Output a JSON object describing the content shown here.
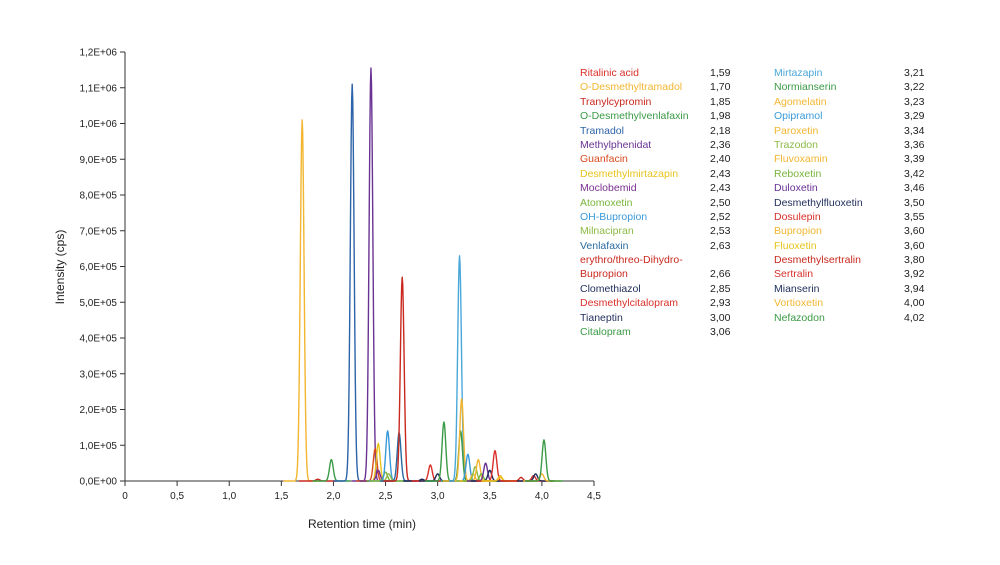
{
  "chart_data": {
    "type": "line",
    "title": "",
    "xlabel": "Retention time (min)",
    "ylabel": "Intensity (cps)",
    "xlim": [
      0,
      4.5
    ],
    "ylim": [
      0,
      1200000
    ],
    "grid": false,
    "x_ticks": [
      "0",
      "0,5",
      "1,0",
      "1,5",
      "2,0",
      "2,5",
      "3,0",
      "3,5",
      "4,0",
      "4,5"
    ],
    "x_tick_values": [
      0,
      0.5,
      1.0,
      1.5,
      2.0,
      2.5,
      3.0,
      3.5,
      4.0,
      4.5
    ],
    "y_ticks": [
      "0,0E+00",
      "1,0E+05",
      "2,0E+05",
      "3,0E+05",
      "4,0E+05",
      "5,0E+05",
      "6,0E+05",
      "7,0E+05",
      "8,0E+05",
      "9,0E+05",
      "1,0E+06",
      "1,1E+06",
      "1,2E+06"
    ],
    "y_tick_values": [
      0,
      100000,
      200000,
      300000,
      400000,
      500000,
      600000,
      700000,
      800000,
      900000,
      1000000,
      1100000,
      1200000
    ],
    "legend_position": "right",
    "series": [
      {
        "name": "Ritalinic acid",
        "rt": "1,59",
        "rt_value": 1.59,
        "peak": 0,
        "color": "#d9302a"
      },
      {
        "name": "O-Desmethyltramadol",
        "rt": "1,70",
        "rt_value": 1.7,
        "peak": 1010000,
        "color": "#f2b630"
      },
      {
        "name": "Tranylcypromin",
        "rt": "1,85",
        "rt_value": 1.85,
        "peak": 5000,
        "color": "#c8281e"
      },
      {
        "name": "O-Desmethylvenlafaxin",
        "rt": "1,98",
        "rt_value": 1.98,
        "peak": 60000,
        "color": "#3a9a45"
      },
      {
        "name": "Tramadol",
        "rt": "2,18",
        "rt_value": 2.18,
        "peak": 1110000,
        "color": "#2d63a8"
      },
      {
        "name": "Methylphenidat",
        "rt": "2,36",
        "rt_value": 2.36,
        "peak": 1155000,
        "color": "#6a3293"
      },
      {
        "name": "Guanfacin",
        "rt": "2,40",
        "rt_value": 2.4,
        "peak": 90000,
        "color": "#d94a1e"
      },
      {
        "name": "Desmethylmirtazapin",
        "rt": "2,43",
        "rt_value": 2.43,
        "peak": 105000,
        "color": "#e6c41e"
      },
      {
        "name": "Moclobemid",
        "rt": "2,43",
        "rt_value": 2.43,
        "peak": 30000,
        "color": "#7a2f8f"
      },
      {
        "name": "Atomoxetin",
        "rt": "2,50",
        "rt_value": 2.5,
        "peak": 25000,
        "color": "#78b43c"
      },
      {
        "name": "OH-Bupropion",
        "rt": "2,52",
        "rt_value": 2.52,
        "peak": 140000,
        "color": "#3a9ad9"
      },
      {
        "name": "Milnacipran",
        "rt": "2,53",
        "rt_value": 2.53,
        "peak": 20000,
        "color": "#8cbb45"
      },
      {
        "name": "Venlafaxin",
        "rt": "2,63",
        "rt_value": 2.63,
        "peak": 135000,
        "color": "#2a6aa0"
      },
      {
        "name": "erythro/threo-Dihydro-Bupropion",
        "name_line1": "erythro/threo-Dihydro-",
        "name_line2": "Bupropion",
        "rt": "2,66",
        "rt_value": 2.66,
        "peak": 570000,
        "color": "#c8281e"
      },
      {
        "name": "Clomethiazol",
        "rt": "2,85",
        "rt_value": 2.85,
        "peak": 5000,
        "color": "#1f2d5a"
      },
      {
        "name": "Desmethylcitalopram",
        "rt": "2,93",
        "rt_value": 2.93,
        "peak": 45000,
        "color": "#d9302a"
      },
      {
        "name": "Tianeptin",
        "rt": "3,00",
        "rt_value": 3.0,
        "peak": 20000,
        "color": "#1f2d5a"
      },
      {
        "name": "Citalopram",
        "rt": "3,06",
        "rt_value": 3.06,
        "peak": 165000,
        "color": "#3a9a45"
      },
      {
        "name": "Mirtazapin",
        "rt": "3,21",
        "rt_value": 3.21,
        "peak": 630000,
        "color": "#4aa8d8"
      },
      {
        "name": "Normianserin",
        "rt": "3,22",
        "rt_value": 3.22,
        "peak": 140000,
        "color": "#3a9a45"
      },
      {
        "name": "Agomelatin",
        "rt": "3,23",
        "rt_value": 3.23,
        "peak": 230000,
        "color": "#f2b630"
      },
      {
        "name": "Opipramol",
        "rt": "3,29",
        "rt_value": 3.29,
        "peak": 75000,
        "color": "#3a9ad9"
      },
      {
        "name": "Paroxetin",
        "rt": "3,34",
        "rt_value": 3.34,
        "peak": 20000,
        "color": "#f2b630"
      },
      {
        "name": "Trazodon",
        "rt": "3,36",
        "rt_value": 3.36,
        "peak": 40000,
        "color": "#8cbb45"
      },
      {
        "name": "Fluvoxamin",
        "rt": "3,39",
        "rt_value": 3.39,
        "peak": 60000,
        "color": "#f2b630"
      },
      {
        "name": "Reboxetin",
        "rt": "3,42",
        "rt_value": 3.42,
        "peak": 20000,
        "color": "#78b43c"
      },
      {
        "name": "Duloxetin",
        "rt": "3,46",
        "rt_value": 3.46,
        "peak": 50000,
        "color": "#6a3293"
      },
      {
        "name": "Desmethylfluoxetin",
        "rt": "3,50",
        "rt_value": 3.5,
        "peak": 30000,
        "color": "#1f2d5a"
      },
      {
        "name": "Dosulepin",
        "rt": "3,55",
        "rt_value": 3.55,
        "peak": 85000,
        "color": "#d9302a"
      },
      {
        "name": "Bupropion",
        "rt": "3,60",
        "rt_value": 3.6,
        "peak": 15000,
        "color": "#f2b630"
      },
      {
        "name": "Fluoxetin",
        "rt": "3,60",
        "rt_value": 3.6,
        "peak": 10000,
        "color": "#e6c41e"
      },
      {
        "name": "Desmethylsertralin",
        "rt": "3,80",
        "rt_value": 3.8,
        "peak": 10000,
        "color": "#c8281e"
      },
      {
        "name": "Sertralin",
        "rt": "3,92",
        "rt_value": 3.92,
        "peak": 15000,
        "color": "#d9302a"
      },
      {
        "name": "Mianserin",
        "rt": "3,94",
        "rt_value": 3.94,
        "peak": 20000,
        "color": "#1f2d5a"
      },
      {
        "name": "Vortioxetin",
        "rt": "4,00",
        "rt_value": 4.0,
        "peak": 20000,
        "color": "#f2b630"
      },
      {
        "name": "Nefazodon",
        "rt": "4,02",
        "rt_value": 4.02,
        "peak": 115000,
        "color": "#3a9a45"
      }
    ]
  }
}
